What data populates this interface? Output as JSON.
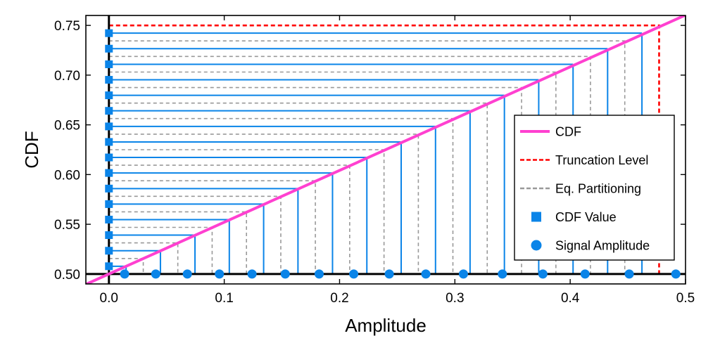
{
  "chart_data": {
    "type": "line",
    "title": "",
    "xlabel": "Amplitude",
    "ylabel": "CDF",
    "xlim": [
      -0.02,
      0.5
    ],
    "ylim": [
      0.49,
      0.76
    ],
    "xticks": [
      0.0,
      0.1,
      0.2,
      0.3,
      0.4,
      0.5
    ],
    "xtick_labels": [
      "0.0",
      "0.1",
      "0.2",
      "0.3",
      "0.4",
      "0.5"
    ],
    "yticks": [
      0.5,
      0.55,
      0.6,
      0.65,
      0.7,
      0.75
    ],
    "ytick_labels": [
      "0.50",
      "0.55",
      "0.60",
      "0.65",
      "0.70",
      "0.75"
    ],
    "grid": false,
    "legend_position": "right",
    "cdf_line": {
      "x": [
        -0.02,
        0.5
      ],
      "y": [
        0.4896,
        0.7604
      ]
    },
    "truncation_level": {
      "amplitude": 0.4771,
      "cdf": 0.75
    },
    "equal_partition_levels": [
      0.5156,
      0.5313,
      0.5469,
      0.5625,
      0.5781,
      0.5938,
      0.6094,
      0.625,
      0.6406,
      0.6563,
      0.6719,
      0.6875,
      0.7031,
      0.7188,
      0.7344
    ],
    "cdf_value_levels": [
      0.5078,
      0.5234,
      0.5391,
      0.5547,
      0.5703,
      0.5859,
      0.6016,
      0.6172,
      0.6328,
      0.6484,
      0.6641,
      0.6797,
      0.6953,
      0.7109,
      0.7266,
      0.7422
    ],
    "signal_amplitudes": [
      0.0136,
      0.0406,
      0.068,
      0.0958,
      0.1241,
      0.1529,
      0.1823,
      0.2123,
      0.2431,
      0.2748,
      0.3074,
      0.3412,
      0.3763,
      0.4129,
      0.4512,
      0.4916
    ],
    "series": [
      {
        "name": "CDF",
        "color": "#ff40d0",
        "style": "solid"
      },
      {
        "name": "Truncation Level",
        "color": "#ff0000",
        "style": "dashed"
      },
      {
        "name": "Eq. Partitioning",
        "color": "#999999",
        "style": "dashed"
      },
      {
        "name": "CDF Value",
        "color": "#0a84e8",
        "marker": "square"
      },
      {
        "name": "Signal Amplitude",
        "color": "#0a84e8",
        "marker": "circle"
      }
    ],
    "colors": {
      "cdf": "#ff40d0",
      "truncation": "#ff0000",
      "partition": "#999999",
      "markers": "#0a84e8"
    }
  }
}
